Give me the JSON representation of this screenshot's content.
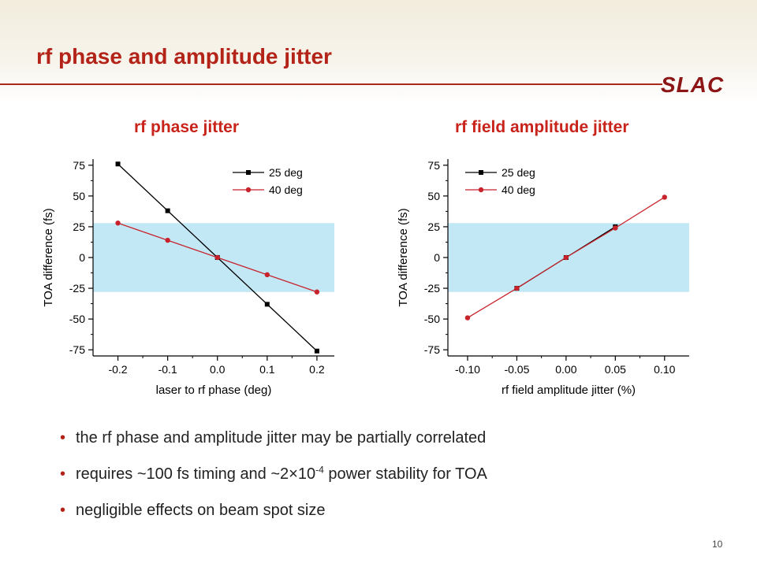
{
  "slide": {
    "title": "rf phase and amplitude jitter",
    "logo_text": "SLAC",
    "page_number": "10",
    "accent_color": "#b42318"
  },
  "bullets": [
    {
      "parts": [
        "the rf phase and amplitude jitter may be partially correlated"
      ]
    },
    {
      "parts": [
        "requires ~100 fs timing and ~2×10",
        "-4",
        " power stability for TOA"
      ]
    },
    {
      "parts": [
        "negligible effects on beam spot size"
      ]
    }
  ],
  "chart_data": [
    {
      "type": "line",
      "title": "rf phase jitter",
      "xlabel": "laser to rf phase (deg)",
      "ylabel": "TOA difference (fs)",
      "xlim": [
        -0.25,
        0.235
      ],
      "ylim": [
        -80,
        80
      ],
      "xticks": [
        -0.2,
        -0.1,
        0.0,
        0.1,
        0.2
      ],
      "xtick_labels": [
        "-0.2",
        "-0.1",
        "0.0",
        "0.1",
        "0.2"
      ],
      "yticks": [
        75,
        50,
        25,
        0,
        -25,
        -50,
        -75
      ],
      "ytick_labels": [
        "75",
        "50",
        "25",
        "0",
        "-25",
        "-50",
        "-75"
      ],
      "band": {
        "y_from": -28,
        "y_to": 28,
        "color": "#c2e8f6"
      },
      "legend": "top-right",
      "series": [
        {
          "name": "25 deg",
          "color": "#000000",
          "marker": "square",
          "x": [
            -0.2,
            -0.1,
            0.0,
            0.1,
            0.2
          ],
          "y": [
            76,
            38,
            0,
            -38,
            -76
          ]
        },
        {
          "name": "40 deg",
          "color": "#c8232c",
          "marker": "circle",
          "x": [
            -0.2,
            -0.1,
            0.0,
            0.1,
            0.2
          ],
          "y": [
            28,
            14,
            0,
            -14,
            -28
          ]
        }
      ]
    },
    {
      "type": "line",
      "title": "rf field amplitude jitter",
      "xlabel": "rf field amplitude jitter (%)",
      "ylabel": "TOA difference (fs)",
      "xlim": [
        -0.12,
        0.125
      ],
      "ylim": [
        -80,
        80
      ],
      "xticks": [
        -0.1,
        -0.05,
        0.0,
        0.05,
        0.1
      ],
      "xtick_labels": [
        "-0.10",
        "-0.05",
        "0.00",
        "0.05",
        "0.10"
      ],
      "yticks": [
        75,
        50,
        25,
        0,
        -25,
        -50,
        -75
      ],
      "ytick_labels": [
        "75",
        "50",
        "25",
        "0",
        "-25",
        "-50",
        "-75"
      ],
      "band": {
        "y_from": -28,
        "y_to": 28,
        "color": "#c2e8f6"
      },
      "legend": "top-left",
      "series": [
        {
          "name": "25 deg",
          "color": "#000000",
          "marker": "square",
          "x": [
            -0.05,
            0.0,
            0.05
          ],
          "y": [
            -25,
            0,
            25
          ]
        },
        {
          "name": "40 deg",
          "color": "#c8232c",
          "marker": "circle",
          "x": [
            -0.1,
            -0.05,
            0.0,
            0.05,
            0.1
          ],
          "y": [
            -49,
            -25,
            0,
            24,
            49
          ]
        }
      ]
    }
  ]
}
